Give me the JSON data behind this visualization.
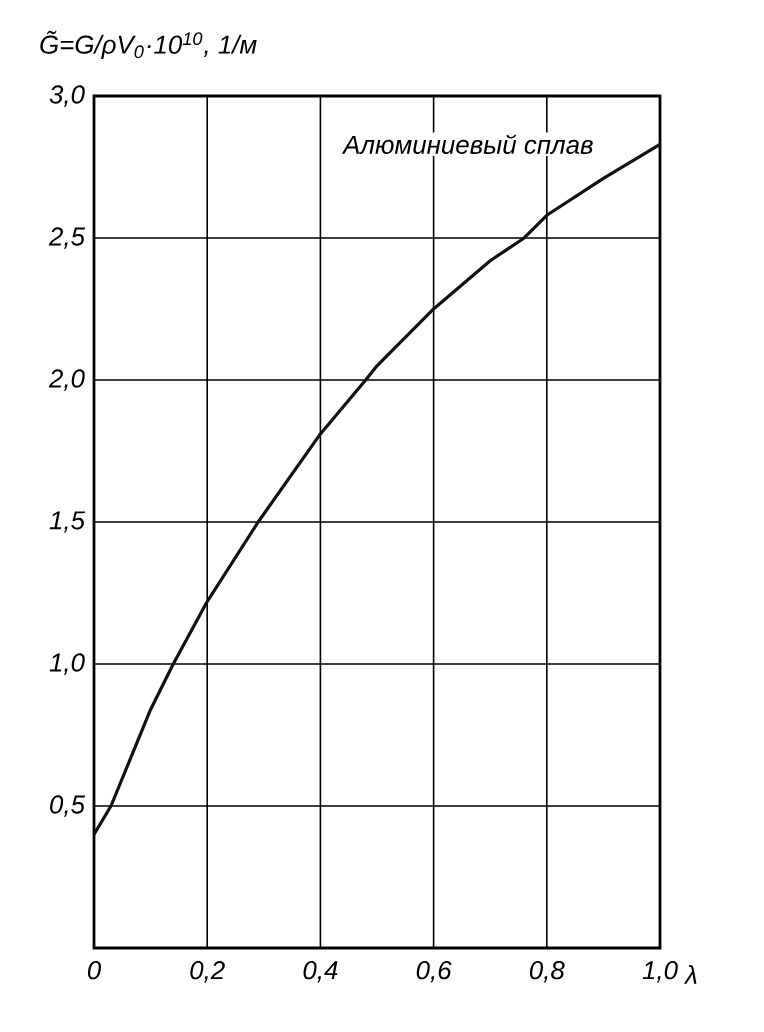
{
  "chart_data": {
    "type": "line",
    "ylabel": "G̃=G/ρV$_{0}$·10$^{10}$, 1/м",
    "xlabel": "λ",
    "x": [
      0,
      0.03,
      0.1,
      0.14,
      0.2,
      0.29,
      0.4,
      0.48,
      0.5,
      0.6,
      0.7,
      0.76,
      0.8,
      0.9,
      1.0
    ],
    "series": [
      {
        "name": "Алюминиевый сплав",
        "color": "#111111",
        "values": [
          0.4,
          0.5,
          0.84,
          1.0,
          1.22,
          1.5,
          1.81,
          2.0,
          2.05,
          2.25,
          2.42,
          2.5,
          2.58,
          2.71,
          2.83
        ]
      }
    ],
    "xlim": [
      0,
      1.0
    ],
    "ylim": [
      0,
      3.0
    ],
    "xticks": [
      {
        "value": 0,
        "label": "0"
      },
      {
        "value": 0.2,
        "label": "0,2"
      },
      {
        "value": 0.4,
        "label": "0,4"
      },
      {
        "value": 0.6,
        "label": "0,6"
      },
      {
        "value": 0.8,
        "label": "0,8"
      },
      {
        "value": 1.0,
        "label": "1,0"
      }
    ],
    "yticks": [
      {
        "value": 0.5,
        "label": "0,5"
      },
      {
        "value": 1.0,
        "label": "1,0"
      },
      {
        "value": 1.5,
        "label": "1,5"
      },
      {
        "value": 2.0,
        "label": "2,0"
      },
      {
        "value": 2.5,
        "label": "2,5"
      },
      {
        "value": 3.0,
        "label": "3,0"
      }
    ],
    "grid": true,
    "marker": "none",
    "line_style": "solid"
  }
}
